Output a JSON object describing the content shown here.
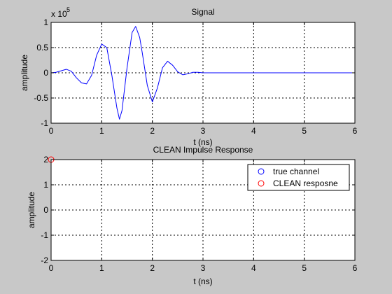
{
  "chart_data": [
    {
      "type": "line",
      "title": "Signal",
      "xlabel": "t (ns)",
      "ylabel": "amplitude",
      "exponent_label": "x 10",
      "exponent_power": "5",
      "xlim": [
        0,
        6
      ],
      "ylim": [
        -1,
        1
      ],
      "xticks": [
        0,
        1,
        2,
        3,
        4,
        5,
        6
      ],
      "yticks": [
        -1,
        -0.5,
        0,
        0.5,
        1
      ],
      "xtick_labels": [
        "0",
        "1",
        "2",
        "3",
        "4",
        "5",
        "6"
      ],
      "ytick_labels": [
        "-1",
        "-0.5",
        "0",
        "0.5",
        "1"
      ],
      "grid": true,
      "series": [
        {
          "color": "#0000ff",
          "x": [
            0,
            0.1,
            0.2,
            0.3,
            0.4,
            0.5,
            0.6,
            0.7,
            0.8,
            0.9,
            1.0,
            1.1,
            1.2,
            1.3,
            1.35,
            1.4,
            1.5,
            1.6,
            1.67,
            1.75,
            1.8,
            1.9,
            2.0,
            2.1,
            2.2,
            2.3,
            2.4,
            2.5,
            2.6,
            2.7,
            2.8,
            2.9,
            3.0,
            3.5,
            4.0,
            5.0,
            6.0
          ],
          "y": [
            0,
            0.01,
            0.04,
            0.07,
            0.03,
            -0.1,
            -0.2,
            -0.22,
            -0.05,
            0.35,
            0.57,
            0.5,
            -0.05,
            -0.7,
            -0.92,
            -0.75,
            0.1,
            0.8,
            0.92,
            0.7,
            0.4,
            -0.25,
            -0.58,
            -0.3,
            0.1,
            0.23,
            0.15,
            0.02,
            -0.04,
            -0.02,
            0.01,
            0.01,
            0,
            0,
            0,
            0,
            0
          ]
        }
      ]
    },
    {
      "type": "scatter",
      "title": "CLEAN Impulse Response",
      "xlabel": "t (ns)",
      "ylabel": "amplitude",
      "xlim": [
        0,
        6
      ],
      "ylim": [
        -2,
        2
      ],
      "xticks": [
        0,
        1,
        2,
        3,
        4,
        5,
        6
      ],
      "yticks": [
        -2,
        -1,
        0,
        1,
        2
      ],
      "xtick_labels": [
        "0",
        "1",
        "2",
        "3",
        "4",
        "5",
        "6"
      ],
      "ytick_labels": [
        "-2",
        "-1",
        "0",
        "1",
        "2"
      ],
      "grid": true,
      "legend": {
        "placement": "top-right"
      },
      "series": [
        {
          "name": "true channel",
          "color": "#0000ff",
          "marker": "circle",
          "x": [],
          "y": []
        },
        {
          "name": "CLEAN resposne",
          "color": "#ff0000",
          "marker": "circle",
          "stem": true,
          "x": [
            0
          ],
          "y": [
            2
          ]
        }
      ]
    }
  ]
}
